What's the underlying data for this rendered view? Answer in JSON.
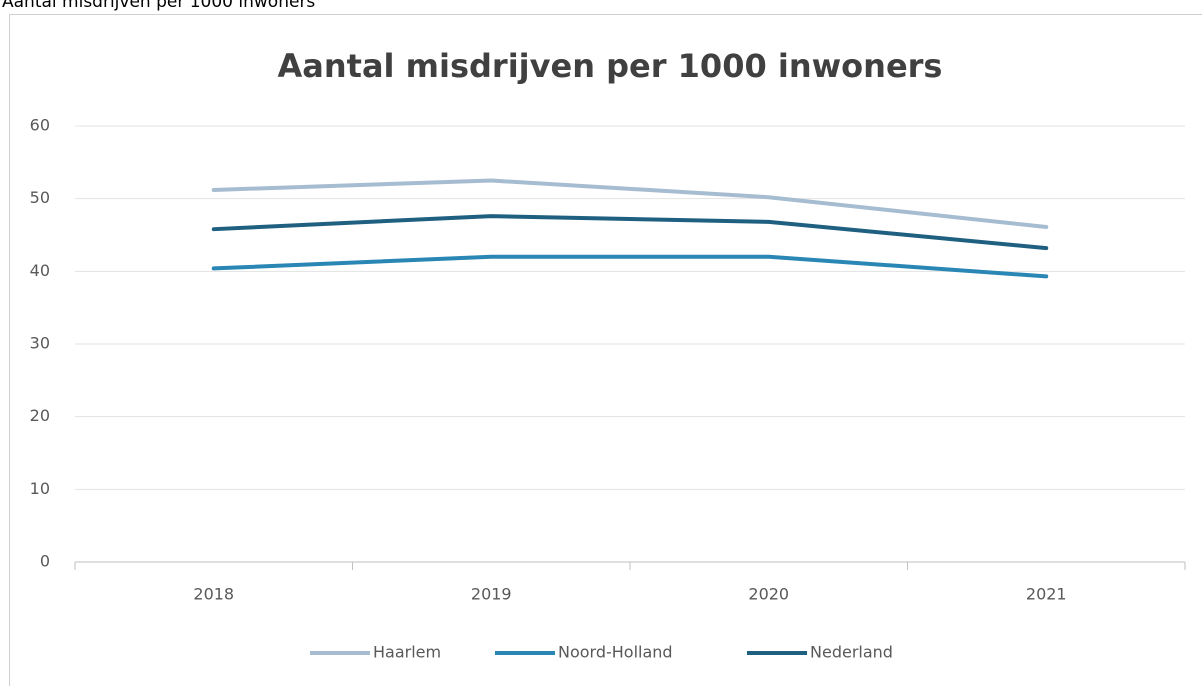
{
  "caption": "Aantal misdrijven per 1000 inwoners",
  "chart_data": {
    "type": "line",
    "title": "Aantal misdrijven per 1000 inwoners",
    "categories": [
      "2018",
      "2019",
      "2020",
      "2021"
    ],
    "series": [
      {
        "name": "Haarlem",
        "color": "#a5bcd1",
        "values": [
          51.2,
          52.5,
          50.2,
          46.1
        ]
      },
      {
        "name": "Noord-Holland",
        "color": "#2a86b4",
        "values": [
          40.4,
          42.0,
          42.0,
          39.3
        ]
      },
      {
        "name": "Nederland",
        "color": "#1f5f80",
        "values": [
          45.8,
          47.6,
          46.8,
          43.2
        ]
      }
    ],
    "ylim": [
      0,
      60
    ],
    "yticks": [
      0,
      10,
      20,
      30,
      40,
      50,
      60
    ],
    "grid": true,
    "legend": "bottom"
  }
}
